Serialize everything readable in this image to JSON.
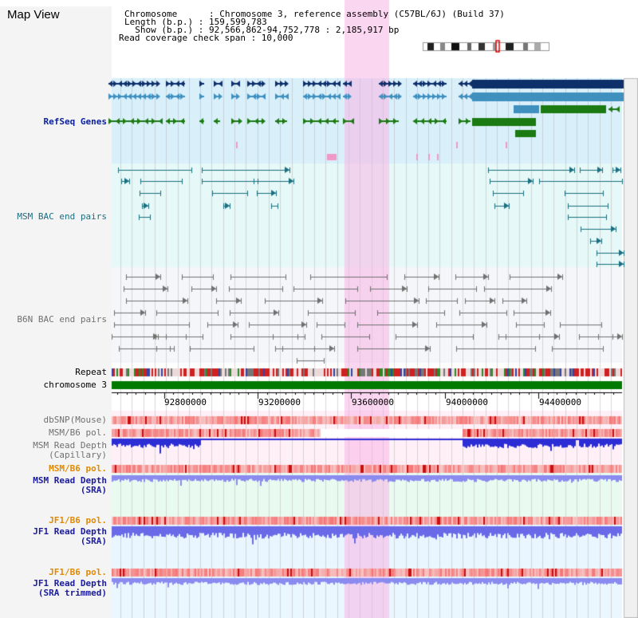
{
  "title": "Map View",
  "info": {
    "chromosome": "Chromosome      : Chromosome 3, reference assembly (C57BL/6J) (Build 37)",
    "length": "Length (b.p.) : 159,599,783",
    "show": "  Show (b.p.) : 92,566,862-94,752,778 : 2,185,917 bp",
    "coverage": "Read coverage check span : 10,000"
  },
  "tracks": {
    "refseq": "RefSeq Genes",
    "msm_bac": "MSM BAC end pairs",
    "b6n_bac": "B6N BAC end pairs",
    "repeat": "Repeat",
    "chromosome": "chromosome 3",
    "dbsnp": "dbSNP(Mouse)",
    "msm_b6_pol_1": "MSM/B6 pol.",
    "msm_read_depth_cap_1": "MSM Read Depth",
    "msm_read_depth_cap_2": "(Capillary)",
    "msm_b6_pol_2": "MSM/B6 pol.",
    "msm_read_depth_sra_1": "MSM Read Depth",
    "msm_read_depth_sra_2": "(SRA)",
    "jf1_b6_pol_1": "JF1/B6 pol.",
    "jf1_read_depth_sra_1": "JF1 Read Depth",
    "jf1_read_depth_sra_2": "(SRA)",
    "jf1_b6_pol_2": "JF1/B6 pol.",
    "jf1_read_depth_trim_1": "JF1 Read Depth",
    "jf1_read_depth_trim_2": "(SRA trimmed)"
  },
  "axis": {
    "ticks": [
      "92800000",
      "93200000",
      "93600000",
      "94000000",
      "94400000"
    ]
  },
  "colors": {
    "refseq_dark": "#0d2f6a",
    "refseq_mid": "#3f8fbf",
    "refseq_green": "#1b7a12",
    "highlight": "#f7c6ec",
    "depth_blue": "#2d2dd6",
    "depth_light": "#8a8aef"
  }
}
